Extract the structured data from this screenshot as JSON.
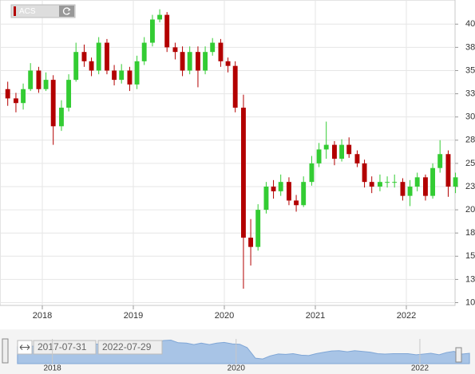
{
  "chart_data": {
    "type": "candlestick",
    "legend": "ACS",
    "x": [
      2017.62,
      2017.71,
      2017.79,
      2017.87,
      2017.96,
      2018.04,
      2018.12,
      2018.21,
      2018.29,
      2018.37,
      2018.46,
      2018.54,
      2018.62,
      2018.71,
      2018.79,
      2018.87,
      2018.96,
      2019.04,
      2019.12,
      2019.21,
      2019.29,
      2019.37,
      2019.46,
      2019.54,
      2019.62,
      2019.71,
      2019.79,
      2019.87,
      2019.96,
      2020.04,
      2020.12,
      2020.21,
      2020.29,
      2020.37,
      2020.46,
      2020.54,
      2020.62,
      2020.71,
      2020.79,
      2020.87,
      2020.96,
      2021.04,
      2021.12,
      2021.21,
      2021.29,
      2021.37,
      2021.46,
      2021.54,
      2021.62,
      2021.71,
      2021.79,
      2021.87,
      2021.96,
      2022.04,
      2022.12,
      2022.21,
      2022.29,
      2022.37,
      2022.46,
      2022.54
    ],
    "open": [
      33,
      32,
      31.5,
      33,
      35,
      33,
      34,
      29,
      31,
      34,
      37,
      36,
      35,
      38,
      35,
      34,
      35,
      33.5,
      36,
      38,
      40.5,
      41,
      37.5,
      37,
      35,
      37,
      35,
      37,
      38,
      36,
      35.5,
      31,
      17,
      16,
      20,
      22.5,
      22,
      23,
      21,
      20.5,
      23,
      25,
      26.5,
      27,
      25.5,
      27,
      26,
      25,
      23,
      22.5,
      23,
      23,
      23,
      21.5,
      22.5,
      23.5,
      21.5,
      24.5,
      26,
      22.5
    ],
    "high": [
      33.8,
      32.6,
      33.6,
      35.8,
      35.4,
      34.8,
      34.5,
      31.8,
      34.6,
      38,
      37.8,
      36.4,
      38.6,
      38.4,
      35.6,
      35.7,
      35.4,
      36.6,
      38.6,
      41,
      41.6,
      41.3,
      38,
      37.6,
      37.6,
      37.6,
      37.6,
      38.5,
      38.4,
      36.4,
      36,
      32.4,
      19,
      20.6,
      23,
      23.2,
      23.8,
      23.5,
      21.6,
      23.6,
      25.8,
      27.2,
      29.5,
      27.4,
      27.6,
      27.8,
      26.4,
      25.4,
      23.6,
      23.8,
      23.6,
      23.8,
      23.4,
      23.2,
      24,
      23.8,
      25,
      27.5,
      26.4,
      24
    ],
    "low": [
      31.2,
      30.5,
      30.8,
      32.8,
      32.6,
      32.8,
      27,
      28.5,
      30.6,
      33.8,
      35.4,
      34.4,
      34.6,
      34.6,
      33.4,
      33.6,
      32.8,
      33,
      35.6,
      37.6,
      40.2,
      37,
      36.2,
      34.4,
      34.6,
      33.2,
      34.6,
      36.6,
      35.4,
      34.8,
      30.5,
      11.5,
      14,
      15.6,
      19.6,
      21.2,
      21.5,
      20.5,
      19.8,
      20.3,
      22.6,
      24.6,
      25.5,
      24.8,
      25.2,
      25.6,
      24.6,
      22.4,
      21.8,
      22,
      22.4,
      22.4,
      21,
      20.4,
      22,
      21,
      21.2,
      24,
      21.4,
      21.8
    ],
    "close": [
      32,
      31.5,
      33,
      35,
      33,
      34,
      29,
      31,
      34,
      37,
      36,
      35,
      38,
      35,
      34,
      35,
      33.5,
      36,
      38,
      40.5,
      41,
      37.5,
      37,
      35,
      37,
      35,
      37,
      38,
      36,
      35.5,
      31,
      17,
      16,
      20,
      22.5,
      22,
      23,
      21,
      20.5,
      23,
      25,
      26.5,
      27,
      25.5,
      27,
      26,
      25,
      23,
      22.5,
      23,
      23,
      23,
      21.5,
      22.5,
      23.5,
      21.5,
      24.5,
      26,
      22.5,
      23.5
    ],
    "up_color": "#33cc33",
    "down_color": "#b30000",
    "xlim": [
      2017.535,
      2022.535
    ],
    "ylim": [
      9.7,
      42.6
    ],
    "xticks": [
      2018,
      2019,
      2020,
      2021,
      2022
    ],
    "yticks": [
      10,
      {
        "value": 12.5,
        "label": "13"
      },
      15,
      {
        "value": 17.5,
        "label": "18"
      },
      20,
      {
        "value": 22.5,
        "label": "23"
      },
      25,
      {
        "value": 27.5,
        "label": "28"
      },
      30,
      {
        "value": 32.5,
        "label": "33"
      },
      35,
      {
        "value": 37.5,
        "label": "38"
      },
      40
    ],
    "grid": true
  },
  "navigator": {
    "start": "2017-07-31",
    "end": "2022-07-29",
    "xlim": [
      2017.43,
      2022.6
    ],
    "xticks": [
      2018,
      2020,
      2022
    ],
    "color": "#a8c4e6"
  }
}
